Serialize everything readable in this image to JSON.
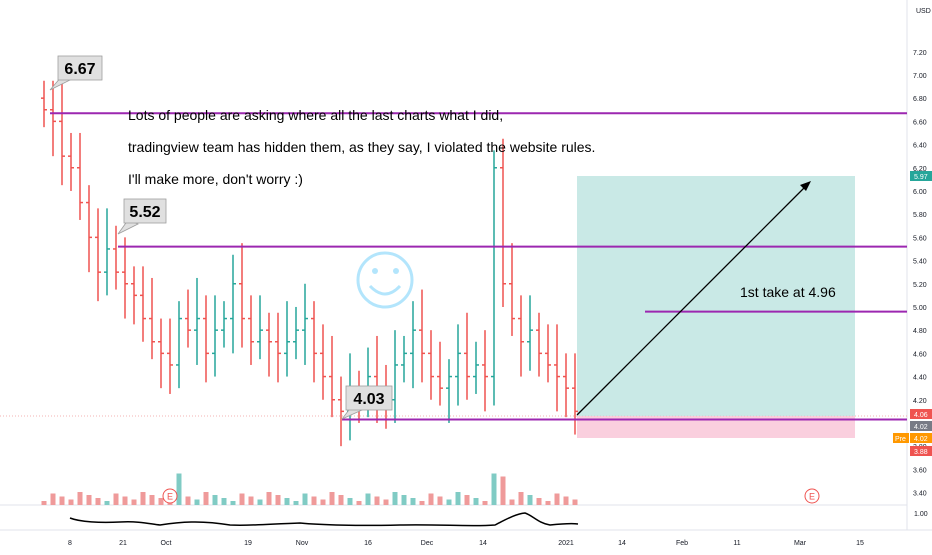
{
  "currency": "USD",
  "chart_data": {
    "type": "ohlc",
    "title": "",
    "y_ticks": [
      "7.20",
      "7.00",
      "6.80",
      "6.60",
      "6.40",
      "6.20",
      "6.00",
      "5.80",
      "5.60",
      "5.40",
      "5.20",
      "5.00",
      "4.80",
      "4.60",
      "4.40",
      "4.20",
      "4.00",
      "3.80",
      "3.60",
      "3.40"
    ],
    "ylim": [
      3.25,
      7.35
    ],
    "x_ticks": [
      {
        "label": "8",
        "date": "2020-09-08"
      },
      {
        "label": "21",
        "date": "2020-09-21"
      },
      {
        "label": "Oct",
        "date": "2020-10-01"
      },
      {
        "label": "19",
        "date": "2020-10-19"
      },
      {
        "label": "Nov",
        "date": "2020-11-02"
      },
      {
        "label": "16",
        "date": "2020-11-16"
      },
      {
        "label": "Dec",
        "date": "2020-12-01"
      },
      {
        "label": "14",
        "date": "2020-12-14"
      },
      {
        "label": "2021",
        "date": "2021-01-01"
      },
      {
        "label": "14",
        "date": "2021-01-14"
      },
      {
        "label": "Feb",
        "date": "2021-02-01"
      },
      {
        "label": "11",
        "date": "2021-02-11"
      },
      {
        "label": "Mar",
        "date": "2021-03-01"
      },
      {
        "label": "15",
        "date": "2021-03-15"
      }
    ],
    "series": [
      {
        "values": [
          6.7,
          6.6,
          6.3,
          6.2,
          5.9,
          5.6,
          5.3,
          5.5,
          5.3,
          5.2,
          5.1,
          4.9,
          4.7,
          4.6,
          4.5,
          4.9,
          4.8,
          4.9,
          4.6,
          4.8,
          4.9,
          5.2,
          4.9,
          4.7,
          4.8,
          4.7,
          4.6,
          4.7,
          4.8,
          4.9,
          4.6,
          4.4,
          4.2,
          4.1,
          4.3,
          4.2,
          4.4,
          4.3,
          4.2,
          4.5,
          4.6,
          4.8,
          4.6,
          4.4,
          4.3,
          4.4,
          4.6,
          4.4,
          4.5,
          4.4,
          6.2,
          5.2,
          4.9,
          4.7,
          4.8,
          4.6,
          4.5,
          4.4,
          4.3,
          4.1
        ]
      }
    ],
    "horizontal_levels": [
      6.67,
      5.52,
      4.03,
      4.96
    ],
    "level_labels": [
      "6.67",
      "5.52",
      "4.03"
    ],
    "take_profit_label": "1st take at 4.96",
    "price_badges": {
      "current": "5.97",
      "last": "4.06",
      "prev": "4.02",
      "pre_label": "Pre",
      "pre_value": "4.02",
      "low": "3.88"
    },
    "annotation_lines": [
      "Lots of people are asking where all the last charts what I did,",
      "tradingview team has hidden them, as they say, I violated the website rules.",
      "I'll make more, don't worry :)"
    ],
    "indicator_tick": "1.00",
    "earnings_marker": "E",
    "smiley": "☺",
    "colors": {
      "up": "#26a69a",
      "down": "#ef5350",
      "level": "#9c27b0",
      "profit_zone": "#b2dfdb",
      "loss_zone": "#f8bbd0",
      "arrow": "#000000"
    }
  }
}
